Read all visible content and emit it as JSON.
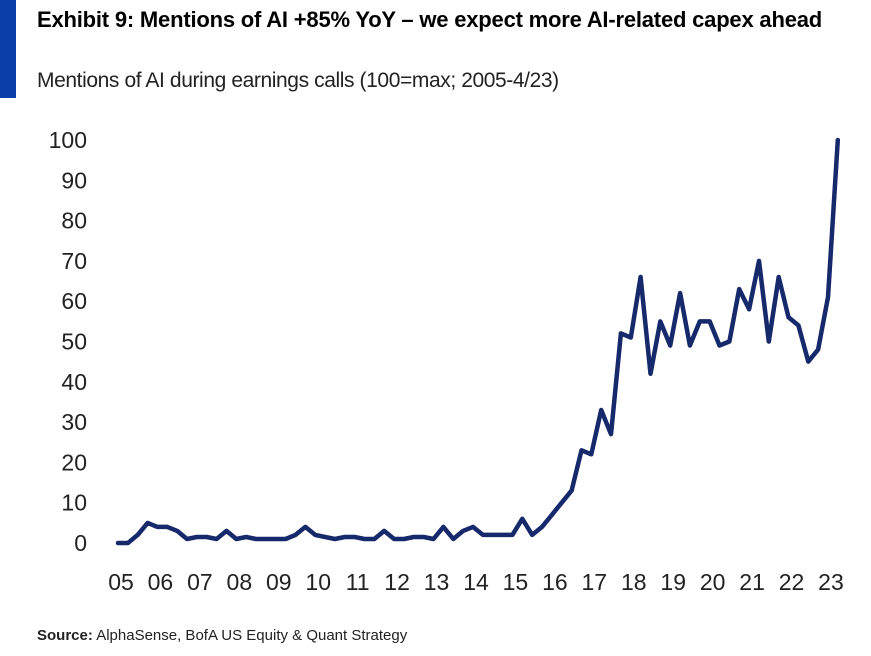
{
  "header": {
    "title": "Exhibit 9: Mentions of AI +85% YoY – we expect more AI-related capex ahead",
    "subtitle": "Mentions of AI during earnings calls (100=max; 2005-4/23)"
  },
  "footer": {
    "source_label": "Source:",
    "source_text": "AlphaSense, BofA US Equity & Quant Strategy"
  },
  "colors": {
    "line": "#15296b",
    "accent": "#0b3ea8"
  },
  "chart_data": {
    "type": "line",
    "title": "",
    "xlabel": "",
    "ylabel": "",
    "ylim": [
      0,
      100
    ],
    "xlim": [
      2005,
      2023.33
    ],
    "y_ticks": [
      0,
      10,
      20,
      30,
      40,
      50,
      60,
      70,
      80,
      90,
      100
    ],
    "x_ticks": [
      {
        "value": 2005,
        "label": "05"
      },
      {
        "value": 2006,
        "label": "06"
      },
      {
        "value": 2007,
        "label": "07"
      },
      {
        "value": 2008,
        "label": "08"
      },
      {
        "value": 2009,
        "label": "09"
      },
      {
        "value": 2010,
        "label": "10"
      },
      {
        "value": 2011,
        "label": "11"
      },
      {
        "value": 2012,
        "label": "12"
      },
      {
        "value": 2013,
        "label": "13"
      },
      {
        "value": 2014,
        "label": "14"
      },
      {
        "value": 2015,
        "label": "15"
      },
      {
        "value": 2016,
        "label": "16"
      },
      {
        "value": 2017,
        "label": "17"
      },
      {
        "value": 2018,
        "label": "18"
      },
      {
        "value": 2019,
        "label": "19"
      },
      {
        "value": 2020,
        "label": "20"
      },
      {
        "value": 2021,
        "label": "21"
      },
      {
        "value": 2022,
        "label": "22"
      },
      {
        "value": 2023,
        "label": "23"
      }
    ],
    "grid": false,
    "series": [
      {
        "x": [
          2005.0,
          2005.25,
          2005.5,
          2005.75,
          2006.0,
          2006.25,
          2006.5,
          2006.75,
          2007.0,
          2007.25,
          2007.5,
          2007.75,
          2008.0,
          2008.25,
          2008.5,
          2008.75,
          2009.0,
          2009.25,
          2009.5,
          2009.75,
          2010.0,
          2010.25,
          2010.5,
          2010.75,
          2011.0,
          2011.25,
          2011.5,
          2011.75,
          2012.0,
          2012.25,
          2012.5,
          2012.75,
          2013.0,
          2013.25,
          2013.5,
          2013.75,
          2014.0,
          2014.25,
          2014.5,
          2014.75,
          2015.0,
          2015.25,
          2015.5,
          2015.75,
          2016.0,
          2016.25,
          2016.5,
          2016.75,
          2017.0,
          2017.25,
          2017.5,
          2017.75,
          2018.0,
          2018.25,
          2018.5,
          2018.75,
          2019.0,
          2019.25,
          2019.5,
          2019.75,
          2020.0,
          2020.25,
          2020.5,
          2020.75,
          2021.0,
          2021.25,
          2021.5,
          2021.75,
          2022.0,
          2022.25,
          2022.5,
          2022.75,
          2023.0,
          2023.25
        ],
        "values": [
          0,
          0,
          2,
          5,
          4,
          4,
          3,
          1,
          1.5,
          1.5,
          1,
          3,
          1,
          1.5,
          1,
          1,
          1,
          1,
          2,
          4,
          2,
          1.5,
          1,
          1.5,
          1.5,
          1,
          1,
          3,
          1,
          1,
          1.5,
          1.5,
          1,
          4,
          1,
          3,
          4,
          2,
          2,
          2,
          2,
          6,
          2,
          4,
          7,
          10,
          13,
          23,
          22,
          33,
          27,
          52,
          51,
          66,
          42,
          55,
          49,
          62,
          49,
          55,
          55,
          49,
          50,
          63,
          58,
          70,
          50,
          66,
          56,
          54,
          45,
          48,
          61,
          100
        ]
      }
    ]
  }
}
